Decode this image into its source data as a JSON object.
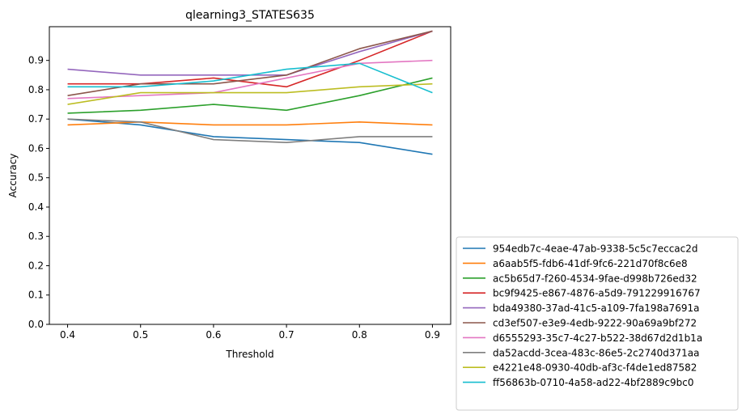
{
  "chart_data": {
    "type": "line",
    "title": "qlearning3_STATES635",
    "xlabel": "Threshold",
    "ylabel": "Accuracy",
    "x": [
      0.4,
      0.5,
      0.6,
      0.7,
      0.8,
      0.9
    ],
    "xticks": [
      "0.4",
      "0.5",
      "0.6",
      "0.7",
      "0.8",
      "0.9"
    ],
    "yticks": [
      "0.0",
      "0.1",
      "0.2",
      "0.3",
      "0.4",
      "0.5",
      "0.6",
      "0.7",
      "0.8",
      "0.9"
    ],
    "xlim": [
      0.375,
      0.925
    ],
    "ylim": [
      0.0,
      1.015
    ],
    "grid": false,
    "legend_position": "outside-bottom-right",
    "series": [
      {
        "name": "954edb7c-4eae-47ab-9338-5c5c7eccac2d",
        "color": "#1f77b4",
        "values": [
          0.7,
          0.68,
          0.64,
          0.63,
          0.62,
          0.58
        ]
      },
      {
        "name": "a6aab5f5-fdb6-41df-9fc6-221d70f8c6e8",
        "color": "#ff7f0e",
        "values": [
          0.68,
          0.69,
          0.68,
          0.68,
          0.69,
          0.68
        ]
      },
      {
        "name": "ac5b65d7-f260-4534-9fae-d998b726ed32",
        "color": "#2ca02c",
        "values": [
          0.72,
          0.73,
          0.75,
          0.73,
          0.78,
          0.84
        ]
      },
      {
        "name": "bc9f9425-e867-4876-a5d9-791229916767",
        "color": "#d62728",
        "values": [
          0.82,
          0.82,
          0.84,
          0.81,
          0.9,
          1.0
        ]
      },
      {
        "name": "bda49380-37ad-41c5-a109-7fa198a7691a",
        "color": "#9467bd",
        "values": [
          0.87,
          0.85,
          0.85,
          0.85,
          0.93,
          1.0
        ]
      },
      {
        "name": "cd3ef507-e3e9-4edb-9222-90a69a9bf272",
        "color": "#8c564b",
        "values": [
          0.78,
          0.82,
          0.82,
          0.85,
          0.94,
          1.0
        ]
      },
      {
        "name": "d6555293-35c7-4c27-b522-38d67d2d1b1a",
        "color": "#e377c2",
        "values": [
          0.77,
          0.78,
          0.79,
          0.84,
          0.89,
          0.9
        ]
      },
      {
        "name": "da52acdd-3cea-483c-86e5-2c2740d371aa",
        "color": "#7f7f7f",
        "values": [
          0.7,
          0.69,
          0.63,
          0.62,
          0.64,
          0.64
        ]
      },
      {
        "name": "e4221e48-0930-40db-af3c-f4de1ed87582",
        "color": "#bcbd22",
        "values": [
          0.75,
          0.79,
          0.79,
          0.79,
          0.81,
          0.82
        ]
      },
      {
        "name": "ff56863b-0710-4a58-ad22-4bf2889c9bc0",
        "color": "#17becf",
        "values": [
          0.81,
          0.81,
          0.83,
          0.87,
          0.89,
          0.79
        ]
      }
    ]
  }
}
